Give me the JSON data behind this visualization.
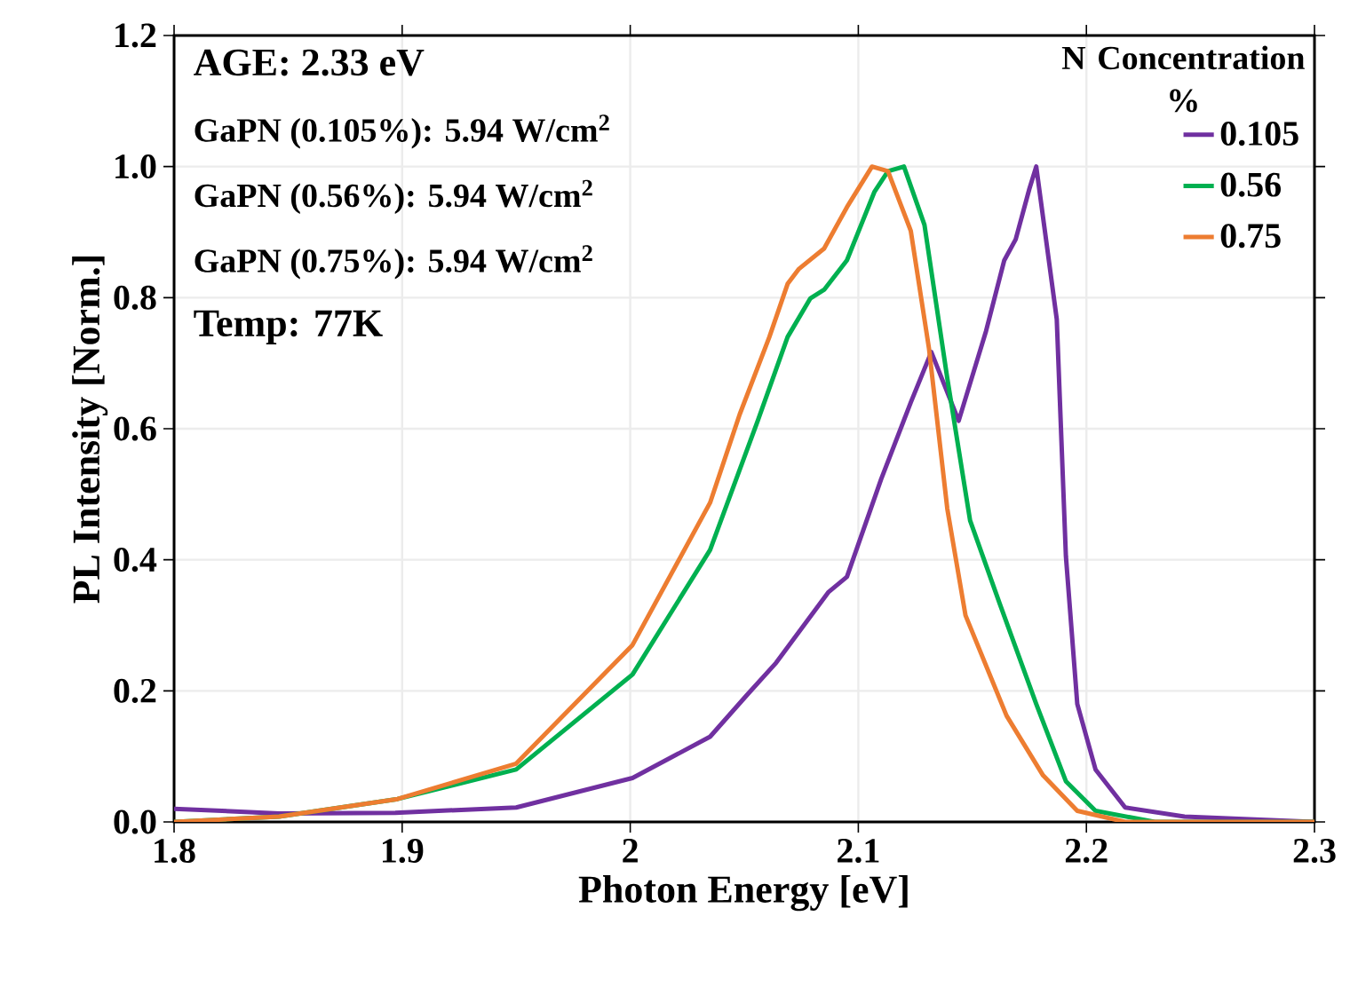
{
  "chart_data": {
    "type": "line",
    "xlabel": "Photon Energy [eV]",
    "ylabel": "PL Intensity [Norm.]",
    "legend_title": "N Concentration %",
    "annotations": [
      "AGE: 2.33 eV",
      "GaPN (0.105%): 5.94 W/cm$^{2}$",
      "GaPN (0.56%): 5.94 W/cm$^{2}$",
      "GaPN (0.75%): 5.94 W/cm$^{2}$",
      "Temp: 77K"
    ],
    "xlim": [
      1.8,
      2.3
    ],
    "ylim": [
      0,
      1.2
    ],
    "xticks": [
      1.8,
      1.9,
      2,
      2.1,
      2.2,
      2.3
    ],
    "yticks": [
      {
        "value": 0,
        "label": "0.0"
      },
      {
        "value": 0.2,
        "label": "0.2"
      },
      {
        "value": 0.4,
        "label": "0.4"
      },
      {
        "value": 0.6,
        "label": "0.6"
      },
      {
        "value": 0.8,
        "label": "0.8"
      },
      {
        "value": 1,
        "label": "1.0"
      },
      {
        "value": 1.2,
        "label": "1.2"
      }
    ],
    "grid": true,
    "legend": "top right",
    "marker": "none",
    "line_style": "solid",
    "series": [
      {
        "name": "0.105",
        "color": "#7030a0",
        "x": [
          1.8,
          1.846,
          1.897,
          1.95,
          2.001,
          2.035,
          2.051,
          2.064,
          2.087,
          2.095,
          2.11,
          2.123,
          2.132,
          2.144,
          2.156,
          2.164,
          2.169,
          2.175,
          2.178,
          2.187,
          2.191,
          2.196,
          2.204,
          2.217,
          2.243,
          2.3
        ],
        "values": [
          0.02,
          0.013,
          0.014,
          0.022,
          0.067,
          0.13,
          0.193,
          0.243,
          0.351,
          0.374,
          0.523,
          0.64,
          0.717,
          0.612,
          0.749,
          0.857,
          0.889,
          0.966,
          1.0,
          0.767,
          0.406,
          0.18,
          0.08,
          0.022,
          0.008,
          0
        ]
      },
      {
        "name": "0.56",
        "color": "#00b050",
        "x": [
          1.8,
          1.846,
          1.898,
          1.95,
          2.001,
          2.035,
          2.056,
          2.069,
          2.079,
          2.085,
          2.095,
          2.107,
          2.113,
          2.12,
          2.129,
          2.139,
          2.149,
          2.162,
          2.178,
          2.191,
          2.204,
          2.23,
          2.3
        ],
        "values": [
          0,
          0.008,
          0.035,
          0.08,
          0.225,
          0.415,
          0.613,
          0.74,
          0.799,
          0.812,
          0.857,
          0.961,
          0.993,
          1.0,
          0.911,
          0.677,
          0.46,
          0.333,
          0.18,
          0.062,
          0.017,
          0,
          0
        ]
      },
      {
        "name": "0.75",
        "color": "#ed7d31",
        "x": [
          1.8,
          1.846,
          1.898,
          1.95,
          2.001,
          2.035,
          2.048,
          2.061,
          2.069,
          2.074,
          2.085,
          2.095,
          2.106,
          2.113,
          2.123,
          2.131,
          2.139,
          2.147,
          2.165,
          2.181,
          2.196,
          2.217,
          2.3
        ],
        "values": [
          0,
          0.008,
          0.035,
          0.089,
          0.27,
          0.487,
          0.622,
          0.74,
          0.821,
          0.844,
          0.875,
          0.938,
          1.0,
          0.993,
          0.902,
          0.722,
          0.478,
          0.315,
          0.162,
          0.071,
          0.017,
          0,
          0
        ]
      }
    ]
  }
}
